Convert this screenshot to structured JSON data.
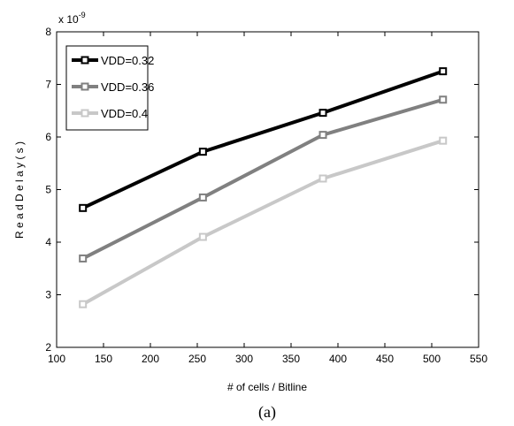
{
  "chart_data": {
    "type": "line",
    "title": "",
    "xlabel": "# of cells / Bitline",
    "ylabel": "R e a d   D e l a y   (  s  )",
    "y_multiplier": "x 10",
    "y_multiplier_exp": "-9",
    "xlim": [
      100,
      550
    ],
    "ylim": [
      2,
      8
    ],
    "xticks": [
      100,
      150,
      200,
      250,
      300,
      350,
      400,
      450,
      500,
      550
    ],
    "yticks": [
      2,
      3,
      4,
      5,
      6,
      7,
      8
    ],
    "grid": false,
    "legend_position": "top-left",
    "x": [
      128,
      256,
      384,
      512
    ],
    "series": [
      {
        "name": "VDD=0.32",
        "values": [
          4.65,
          5.72,
          6.46,
          7.25
        ],
        "color": "#000000"
      },
      {
        "name": "VDD=0.36",
        "values": [
          3.69,
          4.85,
          6.04,
          6.71
        ],
        "color": "#808080"
      },
      {
        "name": "VDD=0.4",
        "values": [
          2.82,
          4.1,
          5.21,
          5.93
        ],
        "color": "#c8c8c8"
      }
    ]
  },
  "caption": "(a)"
}
